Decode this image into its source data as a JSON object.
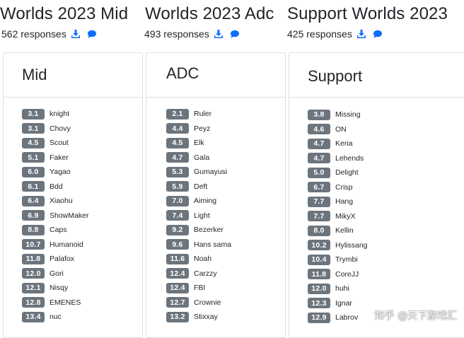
{
  "colors": {
    "badge_bg": "#6c757d",
    "icon": "#0d6efd",
    "text": "#212529",
    "border": "#dcdfe3"
  },
  "icons": {
    "download": "download-icon",
    "comment": "comment-icon"
  },
  "columns": [
    {
      "title": "Worlds 2023 Mid",
      "responses": "562 responses",
      "card_title": "Mid",
      "rows": [
        {
          "score": "3.1",
          "name": "knight"
        },
        {
          "score": "3.1",
          "name": "Chovy"
        },
        {
          "score": "4.5",
          "name": "Scout"
        },
        {
          "score": "5.1",
          "name": "Faker"
        },
        {
          "score": "6.0",
          "name": "Yagao"
        },
        {
          "score": "6.1",
          "name": "Bdd"
        },
        {
          "score": "6.4",
          "name": "Xiaohu"
        },
        {
          "score": "6.9",
          "name": "ShowMaker"
        },
        {
          "score": "8.8",
          "name": "Caps"
        },
        {
          "score": "10.7",
          "name": "Humanoid"
        },
        {
          "score": "11.8",
          "name": "Palafox"
        },
        {
          "score": "12.0",
          "name": "Gori"
        },
        {
          "score": "12.1",
          "name": "Nisqy"
        },
        {
          "score": "12.8",
          "name": "EMENES"
        },
        {
          "score": "13.4",
          "name": "nuc"
        }
      ]
    },
    {
      "title": "Worlds 2023 Adc",
      "responses": "493 responses",
      "card_title": "ADC",
      "rows": [
        {
          "score": "2.1",
          "name": "Ruler"
        },
        {
          "score": "4.4",
          "name": "Peyz"
        },
        {
          "score": "4.5",
          "name": "Elk"
        },
        {
          "score": "4.7",
          "name": "Gala"
        },
        {
          "score": "5.3",
          "name": "Gumayusi"
        },
        {
          "score": "5.9",
          "name": "Deft"
        },
        {
          "score": "7.0",
          "name": "Aiming"
        },
        {
          "score": "7.4",
          "name": "Light"
        },
        {
          "score": "9.2",
          "name": "Bezerker"
        },
        {
          "score": "9.6",
          "name": "Hans sama"
        },
        {
          "score": "11.6",
          "name": "Noah"
        },
        {
          "score": "12.4",
          "name": "Carzzy"
        },
        {
          "score": "12.4",
          "name": "FBI"
        },
        {
          "score": "12.7",
          "name": "Crownie"
        },
        {
          "score": "13.2",
          "name": "Stixxay"
        }
      ]
    },
    {
      "title": "Support Worlds 2023",
      "responses": "425 responses",
      "card_title": "Support",
      "rows": [
        {
          "score": "3.8",
          "name": "Missing"
        },
        {
          "score": "4.6",
          "name": "ON"
        },
        {
          "score": "4.7",
          "name": "Keria"
        },
        {
          "score": "4.7",
          "name": "Lehends"
        },
        {
          "score": "5.0",
          "name": "Delight"
        },
        {
          "score": "6.7",
          "name": "Crisp"
        },
        {
          "score": "7.7",
          "name": "Hang"
        },
        {
          "score": "7.7",
          "name": "MikyX"
        },
        {
          "score": "8.0",
          "name": "Kellin"
        },
        {
          "score": "10.2",
          "name": "Hylissang"
        },
        {
          "score": "10.4",
          "name": "Trymbi"
        },
        {
          "score": "11.8",
          "name": "CoreJJ"
        },
        {
          "score": "12.0",
          "name": "huhi"
        },
        {
          "score": "12.3",
          "name": "Ignar"
        },
        {
          "score": "12.9",
          "name": "Labrov"
        }
      ]
    }
  ],
  "watermark": "知乎 @天下游戏汇"
}
